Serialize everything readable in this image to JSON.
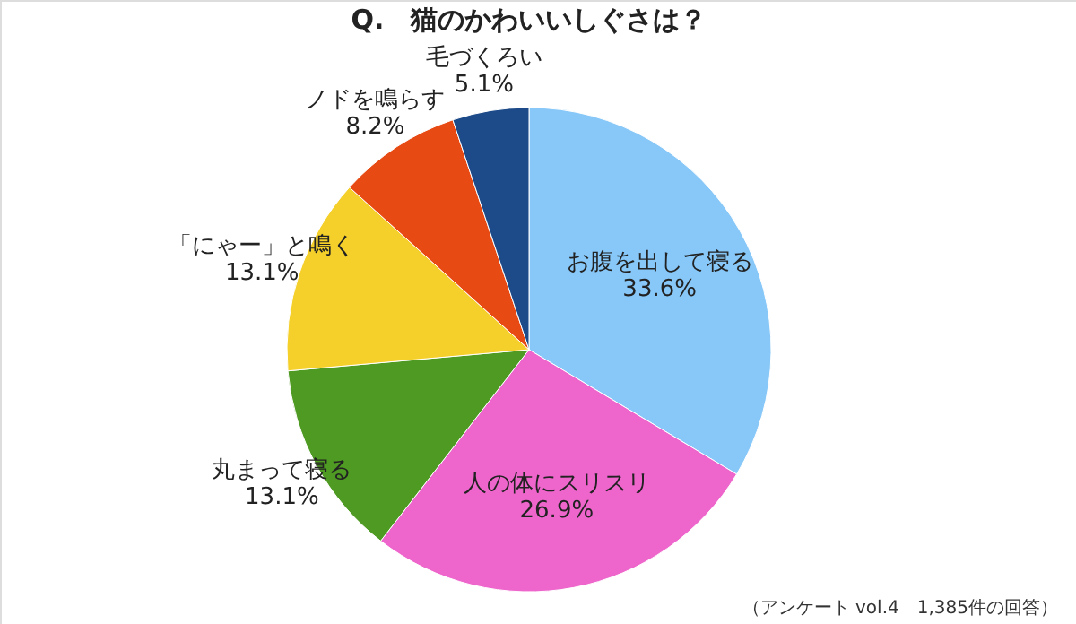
{
  "chart_data": {
    "type": "pie",
    "title": "Q.　猫のかわいいしぐさは？",
    "categories": [
      "お腹を出して寝る",
      "人の体にスリスリ",
      "丸まって寝る",
      "「にゃー」と鳴く",
      "ノドを鳴らす",
      "毛づくろい"
    ],
    "values": [
      33.6,
      26.9,
      13.1,
      13.1,
      8.2,
      5.1
    ],
    "value_labels": [
      "33.6%",
      "26.9%",
      "13.1%",
      "13.1%",
      "8.2%",
      "5.1%"
    ],
    "colors": [
      "#87c8f8",
      "#ee66cc",
      "#4e9a22",
      "#f5d02a",
      "#e84a13",
      "#1d4a88"
    ],
    "annotations": [
      "（アンケート vol.4　1,385件の回答）"
    ]
  }
}
